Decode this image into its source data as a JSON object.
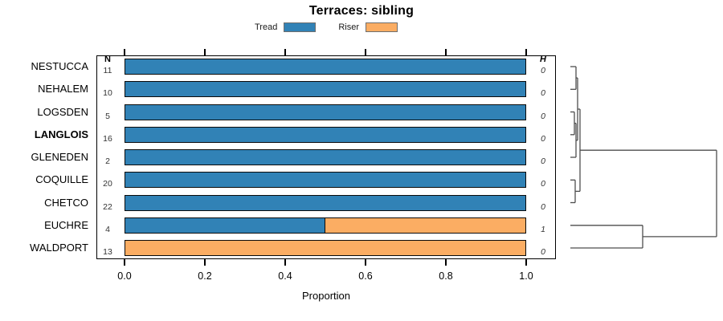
{
  "legend": {
    "items": [
      {
        "label": "Tread",
        "color": "#3182B6"
      },
      {
        "label": "Riser",
        "color": "#FBAD63"
      }
    ]
  },
  "columns": {
    "n_header": "N",
    "h_header": "H"
  },
  "chart_data": {
    "type": "bar",
    "orientation": "horizontal",
    "stacked": true,
    "title": "Terraces: sibling",
    "xlabel": "Proportion",
    "xlim": [
      0,
      1.05
    ],
    "x_ticks": [
      0,
      0.2,
      0.4,
      0.6,
      0.8,
      1
    ],
    "x_tick_labels": [
      "0.0",
      "0.2",
      "0.4",
      "0.6",
      "0.8",
      "1.0"
    ],
    "categories": [
      "NESTUCCA",
      "NEHALEM",
      "LOGSDEN",
      "LANGLOIS",
      "GLENEDEN",
      "COQUILLE",
      "CHETCO",
      "EUCHRE",
      "WALDPORT"
    ],
    "series": [
      {
        "name": "Tread",
        "values": [
          1,
          1,
          1,
          1,
          1,
          1,
          1,
          0.5,
          0
        ]
      },
      {
        "name": "Riser",
        "values": [
          0,
          0,
          0,
          0,
          0,
          0,
          0,
          0.5,
          1
        ]
      }
    ],
    "rows": [
      {
        "label": "NESTUCCA",
        "bold": false,
        "n": "11",
        "h": "0",
        "tread": 1,
        "riser": 0
      },
      {
        "label": "NEHALEM",
        "bold": false,
        "n": "10",
        "h": "0",
        "tread": 1,
        "riser": 0
      },
      {
        "label": "LOGSDEN",
        "bold": false,
        "n": "5",
        "h": "0",
        "tread": 1,
        "riser": 0
      },
      {
        "label": "LANGLOIS",
        "bold": true,
        "n": "16",
        "h": "0",
        "tread": 1,
        "riser": 0
      },
      {
        "label": "GLENEDEN",
        "bold": false,
        "n": "2",
        "h": "0",
        "tread": 1,
        "riser": 0
      },
      {
        "label": "COQUILLE",
        "bold": false,
        "n": "20",
        "h": "0",
        "tread": 1,
        "riser": 0
      },
      {
        "label": "CHETCO",
        "bold": false,
        "n": "22",
        "h": "0",
        "tread": 1,
        "riser": 0
      },
      {
        "label": "EUCHRE",
        "bold": false,
        "n": "4",
        "h": "1",
        "tread": 0.5,
        "riser": 0.5
      },
      {
        "label": "WALDPORT",
        "bold": false,
        "n": "13",
        "h": "0",
        "tread": 0,
        "riser": 1
      }
    ]
  },
  "dendrogram": {
    "structure": "(((NESTUCCA,NEHALEM),((LOGSDEN,LANGLOIS),GLENEDEN)),(COQUILLE,CHETCO)),(EUCHRE,WALDPORT)",
    "segments": [
      [
        710,
        83,
        717,
        83
      ],
      [
        710,
        111.3,
        717,
        111.3
      ],
      [
        717,
        83,
        717,
        111.3
      ],
      [
        717,
        97.1,
        719,
        97.1
      ],
      [
        710,
        139.5,
        715,
        139.5
      ],
      [
        710,
        167.8,
        715,
        167.8
      ],
      [
        715,
        139.5,
        715,
        167.8
      ],
      [
        715,
        153.6,
        717,
        153.6
      ],
      [
        710,
        196,
        717,
        196
      ],
      [
        717,
        153.6,
        717,
        196
      ],
      [
        717,
        174.8,
        719,
        174.8
      ],
      [
        719,
        97.1,
        719,
        174.8
      ],
      [
        719,
        136,
        722,
        136
      ],
      [
        710,
        224.3,
        716,
        224.3
      ],
      [
        710,
        252.5,
        716,
        252.5
      ],
      [
        716,
        224.3,
        716,
        252.5
      ],
      [
        716,
        238.4,
        722,
        238.4
      ],
      [
        722,
        136,
        722,
        238.4
      ],
      [
        722,
        187.2,
        892,
        187.2
      ],
      [
        710,
        280.8,
        800,
        280.8
      ],
      [
        710,
        309,
        800,
        309
      ],
      [
        800,
        280.8,
        800,
        309
      ],
      [
        800,
        294.9,
        892,
        294.9
      ],
      [
        892,
        187.2,
        892,
        294.9
      ]
    ]
  }
}
